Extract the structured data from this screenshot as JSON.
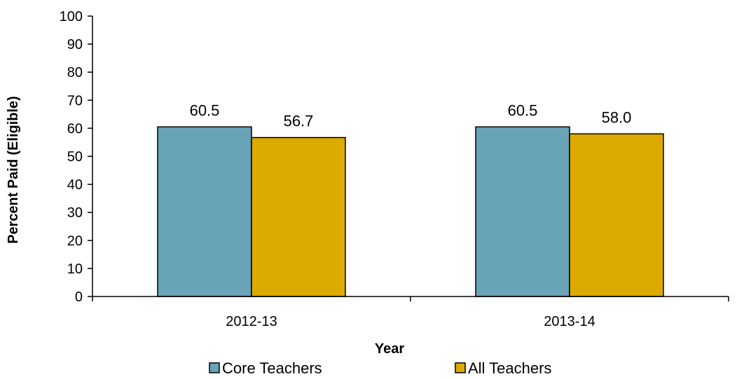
{
  "colors": {
    "core": "#68a3b8",
    "all": "#ddaa00",
    "axis": "#000000"
  },
  "chart_data": {
    "type": "bar",
    "categories": [
      "2012-13",
      "2013-14"
    ],
    "series": [
      {
        "name": "Core Teachers",
        "values": [
          60.5,
          60.5
        ],
        "labels": [
          "60.5",
          "60.5"
        ]
      },
      {
        "name": "All Teachers",
        "values": [
          56.7,
          58.0
        ],
        "labels": [
          "56.7",
          "58.0"
        ]
      }
    ],
    "xlabel": "Year",
    "ylabel": "Percent Paid (Eligible)",
    "ylim": [
      0,
      100
    ],
    "yticks": [
      "0",
      "10",
      "20",
      "30",
      "40",
      "50",
      "60",
      "70",
      "80",
      "90",
      "100"
    ],
    "grid": false,
    "legend": "bottom"
  }
}
